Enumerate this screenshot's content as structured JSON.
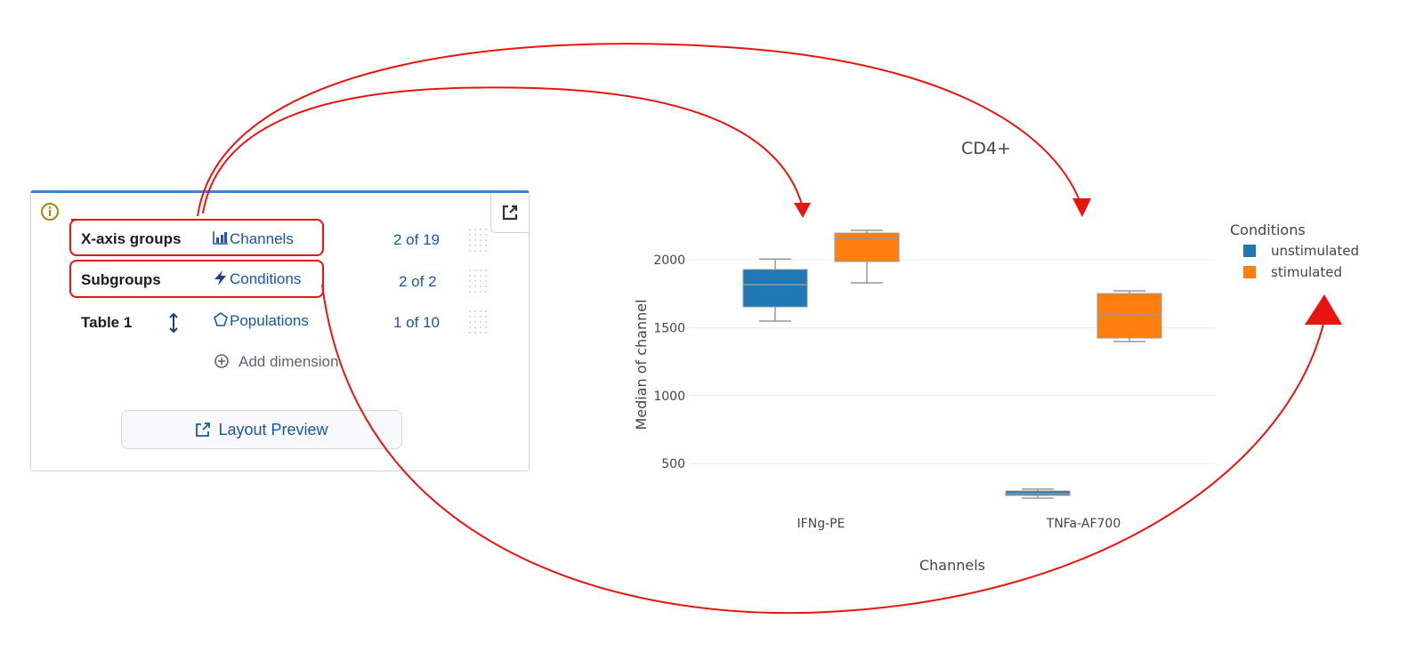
{
  "panel": {
    "rows": [
      {
        "label": "X-axis groups",
        "dimension": "Channels",
        "count": "2 of 19"
      },
      {
        "label": "Subgroups",
        "dimension": "Conditions",
        "count": "2 of 2"
      },
      {
        "label": "Table 1",
        "dimension": "Populations",
        "count": "1 of 10"
      }
    ],
    "add_dimension": "Add dimension",
    "layout_preview": "Layout Preview"
  },
  "chart_data": {
    "type": "box",
    "title": "CD4+",
    "x_label": "Channels",
    "y_label": "Median of channel",
    "legend_title": "Conditions",
    "categories": [
      "IFNg-PE",
      "TNFa-AF700"
    ],
    "series": [
      {
        "name": "unstimulated",
        "color": "#1f77b4",
        "values": [
          {
            "min": 1548,
            "q1": 1653,
            "median": 1817,
            "q3": 1928,
            "max": 2005
          },
          {
            "min": 246,
            "q1": 266,
            "median": 279,
            "q3": 298,
            "max": 312
          }
        ]
      },
      {
        "name": "stimulated",
        "color": "#ff7f0e",
        "values": [
          {
            "min": 1830,
            "q1": 1987,
            "median": 2157,
            "q3": 2196,
            "max": 2216
          },
          {
            "min": 1398,
            "q1": 1424,
            "median": 1594,
            "q3": 1751,
            "max": 1771
          }
        ]
      }
    ],
    "ylim": [
      213,
      2275
    ],
    "yticks": [
      500,
      1000,
      1500,
      2000
    ],
    "grid": true
  }
}
